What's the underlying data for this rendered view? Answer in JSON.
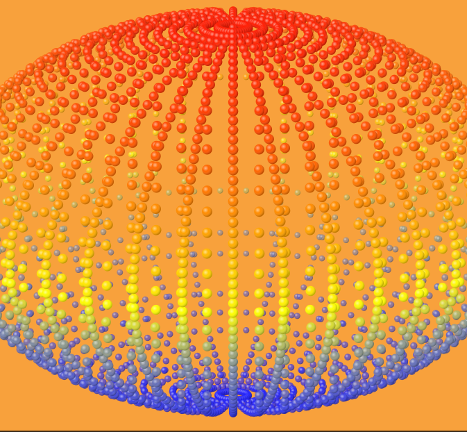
{
  "scene": {
    "subject": "sphere-of-dots",
    "colors": {
      "background": "#f8a13c",
      "top": "#ff1a00",
      "upper": "#ff6a00",
      "middle": "#ffd000",
      "yellow": "#ffff00",
      "lower": "#7f8fa0",
      "bottom": "#1a1aff"
    },
    "meridian_count": 36,
    "latitude_count": 30
  }
}
